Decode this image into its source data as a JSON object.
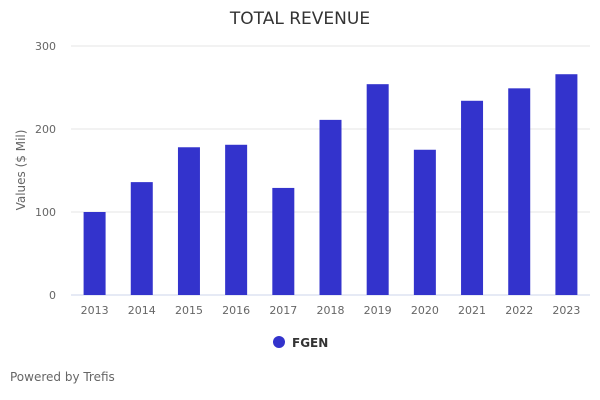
{
  "chart_data": {
    "type": "bar",
    "title": "TOTAL REVENUE",
    "xlabel": "",
    "ylabel": "Values ($ Mil)",
    "categories": [
      "2013",
      "2014",
      "2015",
      "2016",
      "2017",
      "2018",
      "2019",
      "2020",
      "2021",
      "2022",
      "2023"
    ],
    "series": [
      {
        "name": "FGEN",
        "color": "#3333cc",
        "values": [
          100,
          136,
          178,
          181,
          129,
          211,
          254,
          175,
          234,
          249,
          266
        ]
      }
    ],
    "ylim": [
      0,
      300
    ],
    "yticks": [
      "0",
      "100",
      "200",
      "300"
    ],
    "grid": true,
    "legend_position": "bottom-center"
  },
  "credit": "Powered by Trefis"
}
